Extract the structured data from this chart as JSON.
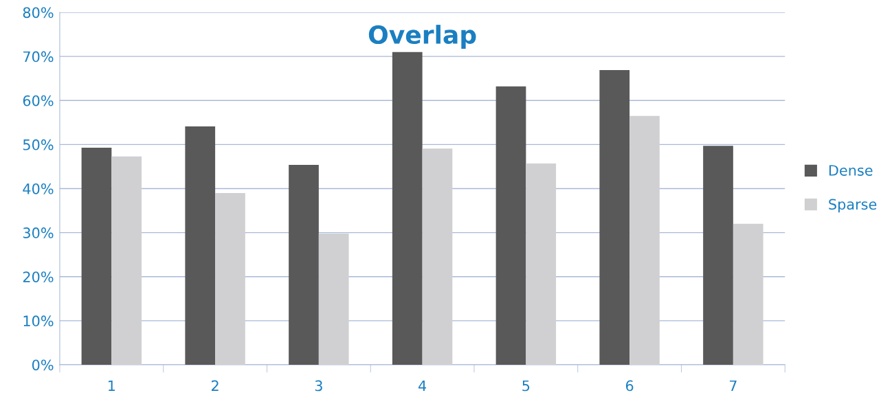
{
  "chart_data": {
    "type": "bar",
    "title": "Overlap",
    "categories": [
      "1",
      "2",
      "3",
      "4",
      "5",
      "6",
      "7"
    ],
    "series": [
      {
        "name": "Dense",
        "color": "#595959",
        "values": [
          49.3,
          54.1,
          45.4,
          71.0,
          63.2,
          66.9,
          49.7
        ]
      },
      {
        "name": "Sparse",
        "color": "#d0d0d2",
        "values": [
          47.3,
          39.0,
          29.8,
          49.1,
          45.7,
          56.5,
          32.0
        ]
      }
    ],
    "ylim": [
      0,
      80
    ],
    "yticks": [
      {
        "value": 0,
        "label": "0%"
      },
      {
        "value": 10,
        "label": "10%"
      },
      {
        "value": 20,
        "label": "20%"
      },
      {
        "value": 30,
        "label": "30%"
      },
      {
        "value": 40,
        "label": "40%"
      },
      {
        "value": 50,
        "label": "50%"
      },
      {
        "value": 60,
        "label": "60%"
      },
      {
        "value": 70,
        "label": "70%"
      },
      {
        "value": 80,
        "label": "80%"
      }
    ],
    "grid": "y",
    "legend": "right"
  }
}
